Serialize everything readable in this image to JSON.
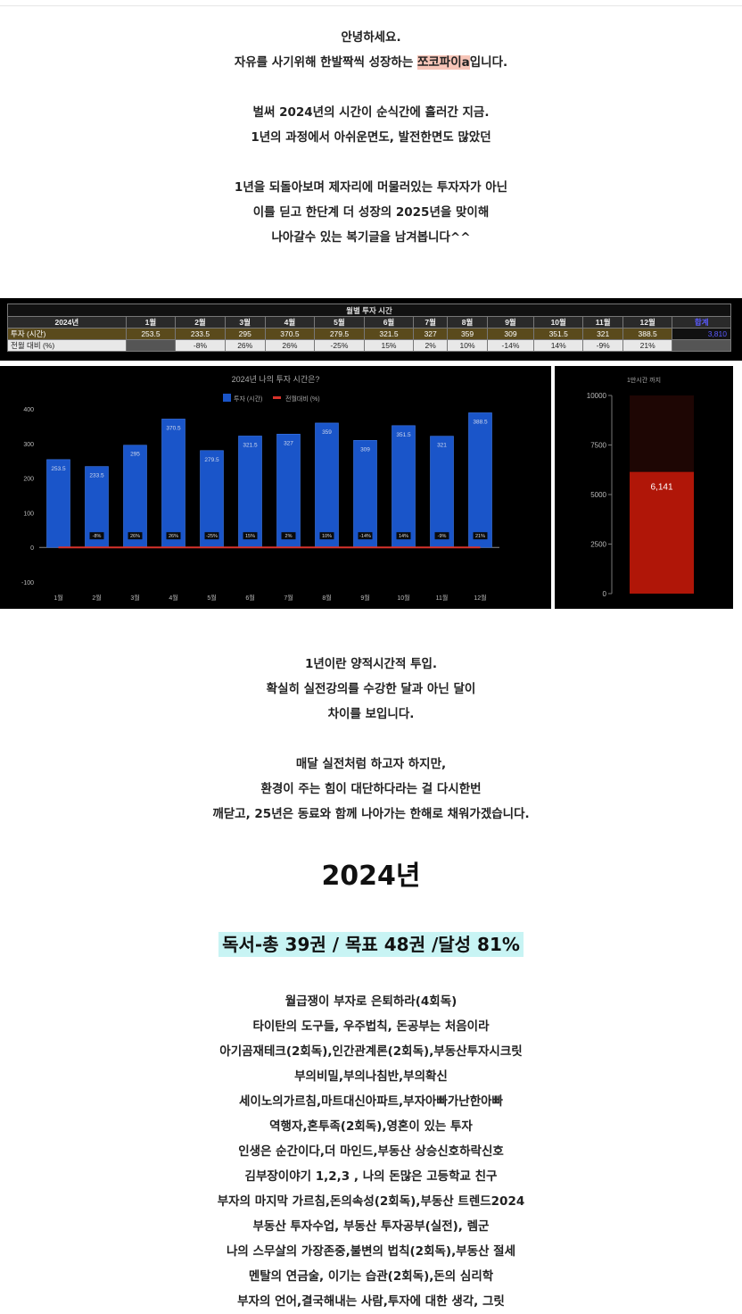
{
  "intro": [
    "안녕하세요.",
    "자유를 사기위해 한발짝씩 성장하는 {hl}입니다.",
    "",
    "벌써 2024년의 시간이 순식간에 흘러간 지금.",
    "1년의 과정에서 아쉬운면도, 발전한면도 많았던",
    "",
    "1년을 되돌아보며 제자리에 머물러있는 투자자가 아닌",
    "이를 딛고 한단계 더 성장의 2025년을 맞이해",
    "나아갈수 있는 복기글을 남겨봅니다^^"
  ],
  "author_name": "쪼코파이a",
  "table": {
    "title": "월별 투자 시간",
    "year_label": "2024년",
    "months": [
      "1월",
      "2월",
      "3월",
      "4월",
      "5월",
      "6월",
      "7월",
      "8월",
      "9월",
      "10월",
      "11월",
      "12월"
    ],
    "sum_label": "합계",
    "row1_label": "투자 (시간)",
    "hours": [
      "253.5",
      "233.5",
      "295",
      "370.5",
      "279.5",
      "321.5",
      "327",
      "359",
      "309",
      "351.5",
      "321",
      "388.5"
    ],
    "sum_value": "3,810",
    "row2_label": "전월 대비 (%)",
    "mom": [
      "",
      "-8%",
      "26%",
      "26%",
      "-25%",
      "15%",
      "2%",
      "10%",
      "-14%",
      "14%",
      "-9%",
      "21%"
    ]
  },
  "chart_data": [
    {
      "type": "bar",
      "title": "2024년 나의 투자 시간은?",
      "categories": [
        "1월",
        "2월",
        "3월",
        "4월",
        "5월",
        "6월",
        "7월",
        "8월",
        "9월",
        "10월",
        "11월",
        "12월"
      ],
      "series": [
        {
          "name": "투자 (시간)",
          "type": "bar",
          "color": "#1a55c9",
          "values": [
            253.5,
            233.5,
            295,
            370.5,
            279.5,
            321.5,
            327,
            359,
            309,
            351.5,
            321,
            388.5
          ]
        },
        {
          "name": "전월대비 (%)",
          "type": "line",
          "color": "#d8322a",
          "values": [
            null,
            -8,
            26,
            26,
            -25,
            15,
            2,
            10,
            -14,
            14,
            -9,
            21
          ]
        }
      ],
      "ylim": [
        -100,
        400
      ],
      "yticks": [
        -100,
        0,
        100,
        200,
        300,
        400
      ],
      "legend": "top-center",
      "grid": false
    },
    {
      "type": "bar",
      "title": "1만시간 까지",
      "categories": [
        ""
      ],
      "values": [
        6141
      ],
      "value_label": "6,141",
      "ylim": [
        0,
        10000
      ],
      "yticks": [
        0,
        2500,
        5000,
        7500,
        10000
      ],
      "target": 10000
    }
  ],
  "middle": [
    "1년이란 양적시간적 투입.",
    "확실히 실전강의를 수강한 달과 아닌 달이",
    "차이를 보입니다.",
    "",
    "매달 실전처럼 하고자 하지만,",
    "환경이 주는 힘이 대단하다라는 걸 다시한번",
    "깨닫고, 25년은 동료와 함께 나아가는 한해로 채워가겠습니다."
  ],
  "year_heading": "2024년",
  "reading_heading": "독서-총 39권 / 목표 48권 /달성 81%",
  "books": [
    "월급쟁이 부자로 은퇴하라(4회독)",
    "타이탄의 도구들, 우주법칙, 돈공부는 처음이라",
    "아기곰재테크(2회독),인간관계론(2회독),부동산투자시크릿",
    "부의비밀,부의나침반,부의확신",
    "세이노의가르침,마트대신아파트,부자아빠가난한아빠",
    "역행자,혼투족(2회독),영혼이 있는 투자",
    "인생은 순간이다,더 마인드,부동산 상승신호하락신호",
    "김부장이야기 1,2,3 , 나의 돈많은 고등학교 친구",
    "부자의 마지막 가르침,돈의속성(2회독),부동산 트렌드2024",
    "부동산 투자수업, 부동산 투자공부(실전), 렘군",
    "나의 스무살의 가장존중,불변의 법칙(2회독),부동산 절세",
    "멘탈의 연금술, 이기는 습관(2회독),돈의 심리학",
    "부자의 언어,결국해내는 사람,투자에 대한 생각, 그릿"
  ]
}
